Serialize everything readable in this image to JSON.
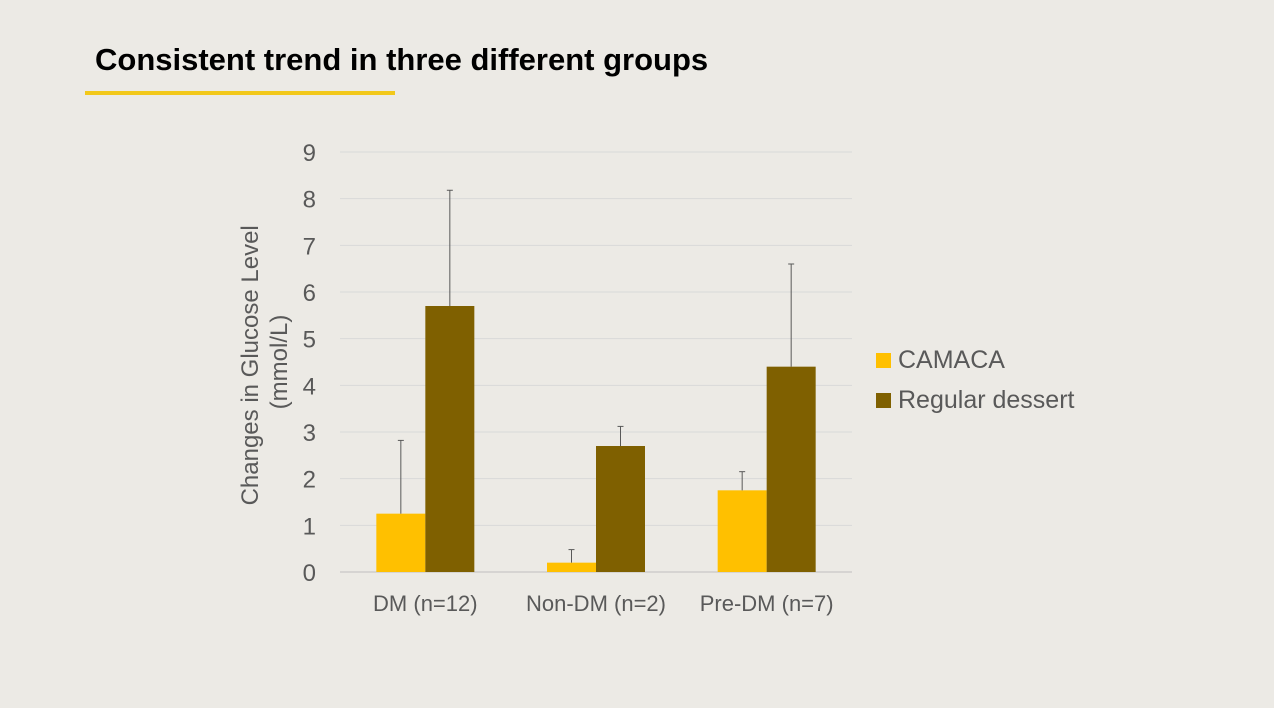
{
  "title": "Consistent trend in three different groups",
  "colors": {
    "accent": "#F2C81A",
    "camaca": "#FFC000",
    "regular": "#7F6000",
    "background": "#ECEAE5",
    "text": "#595959",
    "grid": "#D9D9D9"
  },
  "chart_data": {
    "type": "bar",
    "title": "",
    "xlabel": "",
    "ylabel": "Changes in Glucose Level (mmol/L)",
    "ylabel_lines": [
      "Changes in Glucose Level",
      "(mmol/L)"
    ],
    "ylim": [
      0,
      9
    ],
    "yticks": [
      "0",
      "1",
      "2",
      "3",
      "4",
      "5",
      "6",
      "7",
      "8",
      "9"
    ],
    "categories": [
      "DM (n=12)",
      "Non-DM (n=2)",
      "Pre-DM (n=7)"
    ],
    "series": [
      {
        "name": "CAMACA",
        "color": "#FFC000",
        "values": [
          1.25,
          0.2,
          1.75
        ],
        "errors": [
          1.57,
          0.28,
          0.4
        ]
      },
      {
        "name": "Regular dessert",
        "color": "#7F6000",
        "values": [
          5.7,
          2.7,
          4.4
        ],
        "errors": [
          2.48,
          0.42,
          2.2
        ]
      }
    ],
    "grid": true,
    "legend_position": "right"
  }
}
